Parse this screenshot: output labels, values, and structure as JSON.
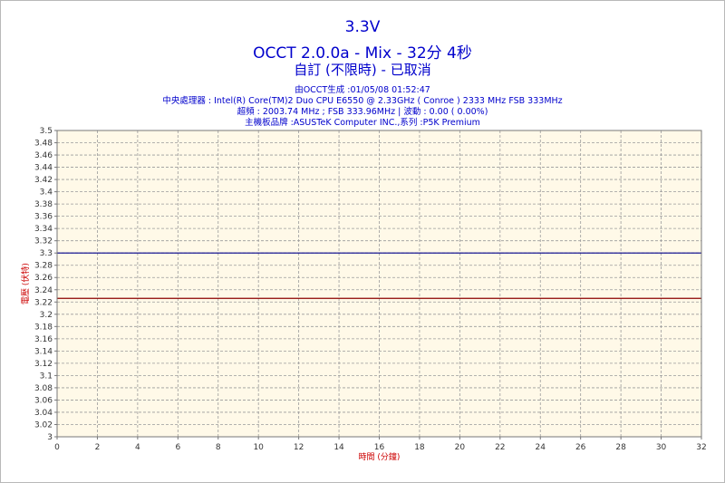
{
  "header": {
    "title": "3.3V",
    "subtitle": "OCCT 2.0.0a - Mix - 32分 4秒",
    "subtitle2": "自訂 (不限時) - 已取消",
    "info_lines": [
      "由OCCT生成 :01/05/08 01:52:47",
      "中央處理器 : Intel(R) Core(TM)2 Duo CPU E6550 @ 2.33GHz ( Conroe ) 2333 MHz FSB 333MHz",
      "超頻 : 2003.74 MHz ; FSB 333.96MHz | 波動 : 0.00 ( 0.00%)",
      "主機板品牌 :ASUSTeK Computer INC.,系列 :P5K Premium"
    ]
  },
  "colors": {
    "title": "#0000cc",
    "plot_background": "#fff9e8",
    "grid": "#9a9a9a",
    "axis_label": "#cc0000",
    "series_blue": "#00008b",
    "series_red": "#8b0000"
  },
  "chart_data": {
    "type": "line",
    "title": "3.3V",
    "xlabel": "時間 (分鐘)",
    "ylabel": "電壓 (伏特)",
    "xlim": [
      0,
      32
    ],
    "ylim": [
      3.0,
      3.5
    ],
    "x_ticks": [
      0,
      2,
      4,
      6,
      8,
      10,
      12,
      14,
      16,
      18,
      20,
      22,
      24,
      26,
      28,
      30,
      32
    ],
    "y_ticks": [
      3,
      3.02,
      3.04,
      3.06,
      3.08,
      3.1,
      3.12,
      3.14,
      3.16,
      3.18,
      3.2,
      3.22,
      3.24,
      3.26,
      3.28,
      3.3,
      3.32,
      3.34,
      3.36,
      3.38,
      3.4,
      3.42,
      3.44,
      3.46,
      3.48,
      3.5
    ],
    "grid": true,
    "series": [
      {
        "color": "#00008b",
        "x": [
          0,
          32
        ],
        "y": [
          3.3,
          3.3
        ]
      },
      {
        "color": "#8b0000",
        "x": [
          0,
          32
        ],
        "y": [
          3.226,
          3.226
        ]
      }
    ]
  }
}
